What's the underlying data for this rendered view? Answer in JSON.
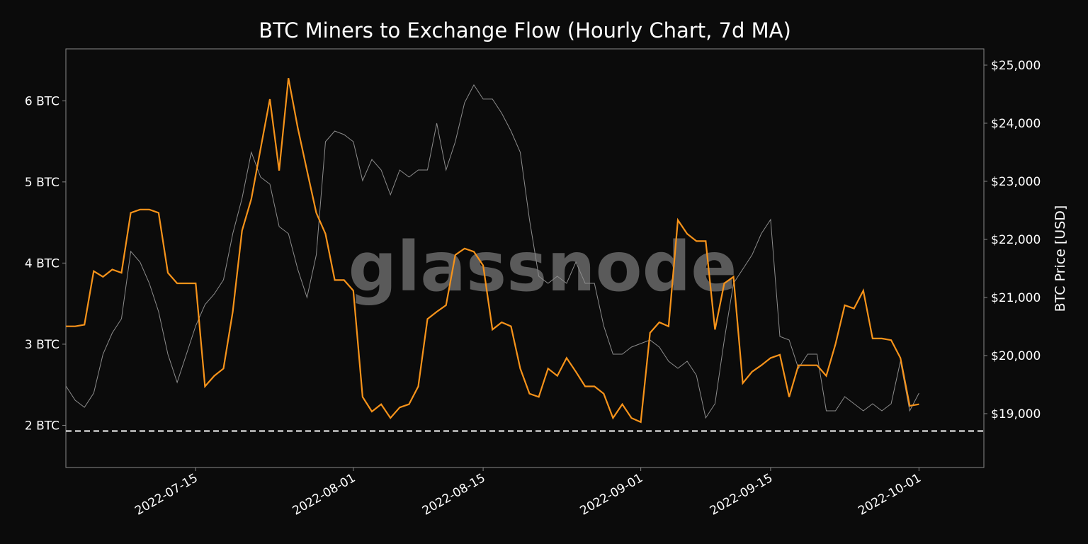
{
  "chart_data": {
    "type": "line",
    "title": "BTC Miners to Exchange Flow (Hourly Chart, 7d MA)",
    "y2label": "BTC Price [USD]",
    "watermark": "glassnode",
    "x": [
      "2022-07-01",
      "2022-07-02",
      "2022-07-03",
      "2022-07-04",
      "2022-07-05",
      "2022-07-06",
      "2022-07-07",
      "2022-07-08",
      "2022-07-09",
      "2022-07-10",
      "2022-07-11",
      "2022-07-12",
      "2022-07-13",
      "2022-07-14",
      "2022-07-15",
      "2022-07-16",
      "2022-07-17",
      "2022-07-18",
      "2022-07-19",
      "2022-07-20",
      "2022-07-21",
      "2022-07-22",
      "2022-07-23",
      "2022-07-24",
      "2022-07-25",
      "2022-07-26",
      "2022-07-27",
      "2022-07-28",
      "2022-07-29",
      "2022-07-30",
      "2022-07-31",
      "2022-08-01",
      "2022-08-02",
      "2022-08-03",
      "2022-08-04",
      "2022-08-05",
      "2022-08-06",
      "2022-08-07",
      "2022-08-08",
      "2022-08-09",
      "2022-08-10",
      "2022-08-11",
      "2022-08-12",
      "2022-08-13",
      "2022-08-14",
      "2022-08-15",
      "2022-08-16",
      "2022-08-17",
      "2022-08-18",
      "2022-08-19",
      "2022-08-20",
      "2022-08-21",
      "2022-08-22",
      "2022-08-23",
      "2022-08-24",
      "2022-08-25",
      "2022-08-26",
      "2022-08-27",
      "2022-08-28",
      "2022-08-29",
      "2022-08-30",
      "2022-08-31",
      "2022-09-01",
      "2022-09-02",
      "2022-09-03",
      "2022-09-04",
      "2022-09-05",
      "2022-09-06",
      "2022-09-07",
      "2022-09-08",
      "2022-09-09",
      "2022-09-10",
      "2022-09-11",
      "2022-09-12",
      "2022-09-13",
      "2022-09-14",
      "2022-09-15",
      "2022-09-16",
      "2022-09-17",
      "2022-09-18",
      "2022-09-19",
      "2022-09-20",
      "2022-09-21",
      "2022-09-22",
      "2022-09-23",
      "2022-09-24",
      "2022-09-25",
      "2022-09-26",
      "2022-09-27",
      "2022-09-28",
      "2022-09-29",
      "2022-09-30",
      "2022-10-01"
    ],
    "series": [
      {
        "name": "Miners to Exchange Flow",
        "color": "#f7931a",
        "axis": "y",
        "values": [
          3.22,
          3.22,
          3.24,
          3.9,
          3.83,
          3.92,
          3.88,
          4.62,
          4.66,
          4.66,
          4.62,
          3.88,
          3.75,
          3.75,
          3.75,
          2.48,
          2.61,
          2.7,
          3.4,
          4.4,
          4.79,
          5.41,
          6.02,
          5.14,
          6.28,
          5.67,
          5.14,
          4.62,
          4.36,
          3.79,
          3.79,
          3.66,
          2.35,
          2.17,
          2.26,
          2.09,
          2.22,
          2.26,
          2.48,
          3.31,
          3.4,
          3.48,
          4.1,
          4.18,
          4.14,
          3.97,
          3.18,
          3.27,
          3.22,
          2.7,
          2.39,
          2.35,
          2.7,
          2.61,
          2.83,
          2.66,
          2.48,
          2.48,
          2.39,
          2.09,
          2.26,
          2.09,
          2.04,
          3.14,
          3.27,
          3.22,
          4.53,
          4.36,
          4.27,
          4.27,
          3.18,
          3.75,
          3.83,
          2.52,
          2.66,
          2.74,
          2.83,
          2.87,
          2.35,
          2.74,
          2.74,
          2.74,
          2.61,
          3.0,
          3.48,
          3.44,
          3.66,
          3.07,
          3.07,
          3.05,
          2.83,
          2.24,
          2.26
        ]
      },
      {
        "name": "BTC Price",
        "color": "#8c8c8c",
        "axis": "y2",
        "values": [
          19476,
          19232,
          19110,
          19354,
          20024,
          20390,
          20634,
          21793,
          21610,
          21244,
          20756,
          20024,
          19537,
          20024,
          20512,
          20878,
          21061,
          21305,
          22098,
          22707,
          23500,
          23073,
          22951,
          22220,
          22098,
          21488,
          21000,
          21732,
          23683,
          23866,
          23805,
          23683,
          23012,
          23378,
          23195,
          22768,
          23195,
          23073,
          23195,
          23195,
          24000,
          23195,
          23683,
          24354,
          24659,
          24415,
          24415,
          24171,
          23866,
          23500,
          22341,
          21366,
          21244,
          21366,
          21244,
          21610,
          21244,
          21244,
          20512,
          20024,
          20024,
          20146,
          20207,
          20268,
          20146,
          19902,
          19780,
          19902,
          19659,
          18927,
          19171,
          20268,
          21244,
          21488,
          21732,
          22098,
          22341,
          20329,
          20268,
          19780,
          20024,
          20024,
          19049,
          19049,
          19293,
          19171,
          19049,
          19171,
          19049,
          19171,
          19902,
          19049,
          19354
        ]
      }
    ],
    "hline": 1.93,
    "xlim": [
      "2022-07-01",
      "2022-10-08"
    ],
    "xticks": [
      "2022-07-15",
      "2022-08-01",
      "2022-08-15",
      "2022-09-01",
      "2022-09-15",
      "2022-10-01"
    ],
    "ylim": [
      1.48,
      6.64
    ],
    "yticks": [
      {
        "value": 2,
        "label": "2 BTC"
      },
      {
        "value": 3,
        "label": "3 BTC"
      },
      {
        "value": 4,
        "label": "4 BTC"
      },
      {
        "value": 5,
        "label": "5 BTC"
      },
      {
        "value": 6,
        "label": "6 BTC"
      }
    ],
    "y2lim": [
      18073,
      25280
    ],
    "y2ticks": [
      {
        "value": 19000,
        "label": "$19,000"
      },
      {
        "value": 20000,
        "label": "$20,000"
      },
      {
        "value": 21000,
        "label": "$21,000"
      },
      {
        "value": 22000,
        "label": "$22,000"
      },
      {
        "value": 23000,
        "label": "$23,000"
      },
      {
        "value": 24000,
        "label": "$24,000"
      },
      {
        "value": 25000,
        "label": "$25,000"
      }
    ]
  }
}
